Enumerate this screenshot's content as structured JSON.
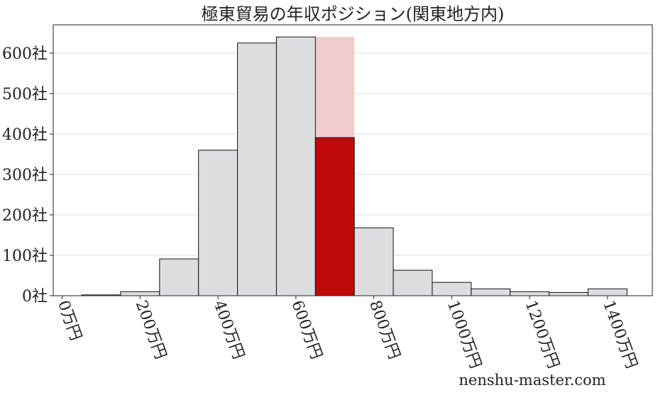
{
  "chart_data": {
    "type": "histogram",
    "title": "極東貿易の年収ポジション(関東地方内)",
    "watermark": "nenshu-master.com",
    "bins": [
      50,
      150,
      250,
      350,
      450,
      550,
      650,
      750,
      850,
      950,
      1050,
      1150,
      1250,
      1350,
      1450
    ],
    "values": [
      2,
      10,
      91,
      360,
      625,
      640,
      391,
      168,
      63,
      33,
      17,
      10,
      8,
      17
    ],
    "colors": [
      "#dcdddf",
      "#dcdddf",
      "#dcdddf",
      "#dcdddf",
      "#dcdddf",
      "#dcdddf",
      "#c00a0a",
      "#dcdddf",
      "#dcdddf",
      "#dcdddf",
      "#dcdddf",
      "#dcdddf",
      "#dcdddf",
      "#dcdddf"
    ],
    "highlight": {
      "range": [
        650,
        750
      ],
      "height": 640,
      "color": "#f0cccc"
    },
    "xlim": [
      -23,
      1515
    ],
    "ylim": [
      0,
      670
    ],
    "xticks": [
      {
        "value": 0,
        "label": "0万円"
      },
      {
        "value": 200,
        "label": "200万円"
      },
      {
        "value": 400,
        "label": "400万円"
      },
      {
        "value": 600,
        "label": "600万円"
      },
      {
        "value": 800,
        "label": "800万円"
      },
      {
        "value": 1000,
        "label": "1000万円"
      },
      {
        "value": 1200,
        "label": "1200万円"
      },
      {
        "value": 1400,
        "label": "1400万円"
      }
    ],
    "yticks": [
      {
        "value": 0,
        "label": "0社"
      },
      {
        "value": 100,
        "label": "100社"
      },
      {
        "value": 200,
        "label": "200社"
      },
      {
        "value": 300,
        "label": "300社"
      },
      {
        "value": 400,
        "label": "400社"
      },
      {
        "value": 500,
        "label": "500社"
      },
      {
        "value": 600,
        "label": "600社"
      }
    ],
    "grid": true
  }
}
